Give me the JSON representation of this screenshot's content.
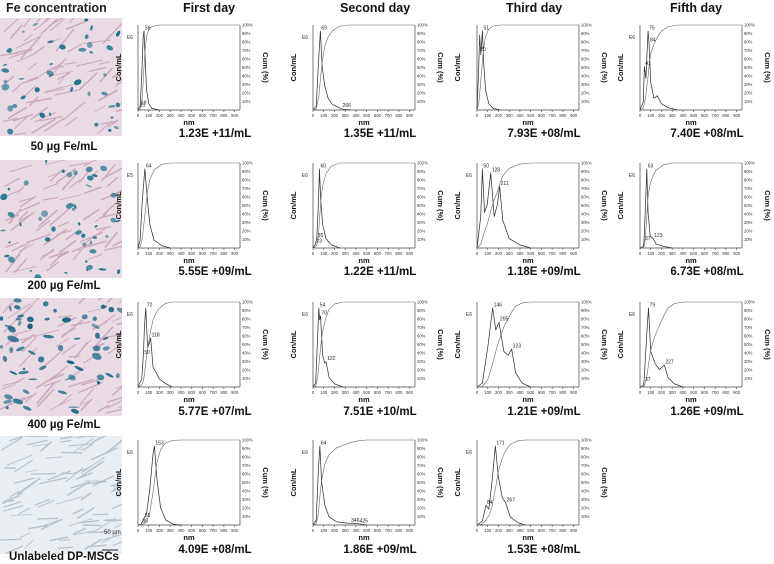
{
  "column_headers": [
    "Fe concentration",
    "First day",
    "Second day",
    "Third day",
    "Fifth day"
  ],
  "rows": [
    {
      "label": "50 µg Fe/mL",
      "micro_color": "#1d6f88",
      "concentrations": [
        "1.23E +11/mL",
        "1.35E +11/mL",
        "7.93E +08/mL",
        "7.40E +08/mL"
      ]
    },
    {
      "label": "200 µg Fe/mL",
      "micro_color": "#27758c",
      "concentrations": [
        "5.55E +09/mL",
        "1.22E +11/mL",
        "1.18E +09/mL",
        "6.73E +08/mL"
      ]
    },
    {
      "label": "400 µg Fe/mL",
      "micro_color": "#17617f",
      "concentrations": [
        "5.77E +07/mL",
        "7.51E +10/mL",
        "1.21E +09/mL",
        "1.26E +09/mL"
      ]
    },
    {
      "label": "Unlabeled DP-MSCs",
      "micro_color": "#9aa9b5",
      "scale_bar": "50 µm",
      "concentrations": [
        "4.09E +08/mL",
        "1.86E +09/mL",
        "1.53E +08/mL",
        null
      ]
    }
  ],
  "axis": {
    "xlabel": "nm",
    "ylabel_left": "Con/mL",
    "ylabel_right": "Cum (%)",
    "xticks": [
      "0",
      "100",
      "200",
      "300",
      "400",
      "500",
      "600",
      "700",
      "800",
      "900"
    ],
    "yticks_right": [
      "10%",
      "20%",
      "30%",
      "40%",
      "50%",
      "60%",
      "70%",
      "80%",
      "90%",
      "100%"
    ]
  },
  "chart_data": [
    {
      "type": "line",
      "row": 0,
      "col": 0,
      "scale": "E6",
      "peaks": [
        {
          "x": 56,
          "label": "56"
        },
        {
          "x": 19,
          "label": "19"
        },
        {
          "x": 11,
          "label": "11"
        }
      ],
      "curve": [
        [
          0,
          0
        ],
        [
          20,
          0.05
        ],
        [
          35,
          0.45
        ],
        [
          48,
          0.92
        ],
        [
          56,
          1.0
        ],
        [
          65,
          0.7
        ],
        [
          80,
          0.25
        ],
        [
          100,
          0.08
        ],
        [
          130,
          0.02
        ],
        [
          200,
          0
        ]
      ]
    },
    {
      "type": "line",
      "row": 0,
      "col": 1,
      "scale": "E6",
      "peaks": [
        {
          "x": 69,
          "label": "69"
        },
        {
          "x": 266,
          "label": "266"
        }
      ],
      "curve": [
        [
          0,
          0
        ],
        [
          30,
          0.05
        ],
        [
          55,
          0.7
        ],
        [
          69,
          1.0
        ],
        [
          85,
          0.55
        ],
        [
          110,
          0.3
        ],
        [
          140,
          0.15
        ],
        [
          180,
          0.07
        ],
        [
          240,
          0.03
        ],
        [
          280,
          0.01
        ],
        [
          350,
          0
        ]
      ]
    },
    {
      "type": "line",
      "row": 0,
      "col": 2,
      "scale": "",
      "peaks": [
        {
          "x": 51,
          "label": "51"
        },
        {
          "x": 20,
          "label": "20"
        }
      ],
      "curve": [
        [
          0,
          0
        ],
        [
          15,
          0.5
        ],
        [
          25,
          0.95
        ],
        [
          35,
          0.7
        ],
        [
          51,
          1.0
        ],
        [
          62,
          0.6
        ],
        [
          80,
          0.25
        ],
        [
          110,
          0.08
        ],
        [
          150,
          0.02
        ],
        [
          220,
          0
        ]
      ]
    },
    {
      "type": "line",
      "row": 0,
      "col": 3,
      "scale": "E6",
      "peaks": [
        {
          "x": 75,
          "label": "75"
        },
        {
          "x": 84,
          "label": "84"
        },
        {
          "x": 41,
          "label": "41"
        }
      ],
      "curve": [
        [
          0,
          0
        ],
        [
          30,
          0.1
        ],
        [
          41,
          0.55
        ],
        [
          55,
          0.4
        ],
        [
          75,
          1.0
        ],
        [
          84,
          0.85
        ],
        [
          100,
          0.35
        ],
        [
          130,
          0.15
        ],
        [
          160,
          0.18
        ],
        [
          200,
          0.08
        ],
        [
          260,
          0.03
        ],
        [
          350,
          0
        ]
      ]
    },
    {
      "type": "line",
      "row": 1,
      "col": 0,
      "scale": "E5",
      "peaks": [
        {
          "x": 64,
          "label": "64"
        }
      ],
      "curve": [
        [
          0,
          0
        ],
        [
          20,
          0.1
        ],
        [
          40,
          0.6
        ],
        [
          64,
          1.0
        ],
        [
          85,
          0.65
        ],
        [
          110,
          0.3
        ],
        [
          150,
          0.1
        ],
        [
          220,
          0.03
        ],
        [
          300,
          0
        ]
      ]
    },
    {
      "type": "line",
      "row": 1,
      "col": 1,
      "scale": "E6",
      "peaks": [
        {
          "x": 60,
          "label": "60"
        },
        {
          "x": 35,
          "label": "35"
        },
        {
          "x": 23,
          "label": "23"
        }
      ],
      "curve": [
        [
          0,
          0
        ],
        [
          23,
          0.05
        ],
        [
          35,
          0.12
        ],
        [
          50,
          0.55
        ],
        [
          60,
          1.0
        ],
        [
          72,
          0.6
        ],
        [
          90,
          0.3
        ],
        [
          120,
          0.12
        ],
        [
          170,
          0.04
        ],
        [
          250,
          0
        ]
      ]
    },
    {
      "type": "line",
      "row": 1,
      "col": 2,
      "scale": "E6",
      "peaks": [
        {
          "x": 50,
          "label": "50"
        },
        {
          "x": 128,
          "label": "128"
        },
        {
          "x": 211,
          "label": "211"
        }
      ],
      "curve": [
        [
          0,
          0
        ],
        [
          35,
          0.4
        ],
        [
          50,
          1.0
        ],
        [
          70,
          0.45
        ],
        [
          95,
          0.55
        ],
        [
          128,
          0.95
        ],
        [
          160,
          0.4
        ],
        [
          190,
          0.55
        ],
        [
          211,
          0.78
        ],
        [
          240,
          0.35
        ],
        [
          300,
          0.12
        ],
        [
          400,
          0.04
        ],
        [
          500,
          0
        ]
      ]
    },
    {
      "type": "line",
      "row": 1,
      "col": 3,
      "scale": "E6",
      "peaks": [
        {
          "x": 63,
          "label": "63"
        },
        {
          "x": 37,
          "label": "37"
        },
        {
          "x": 123,
          "label": "123"
        }
      ],
      "curve": [
        [
          0,
          0
        ],
        [
          30,
          0.02
        ],
        [
          37,
          0.08
        ],
        [
          50,
          0.5
        ],
        [
          63,
          1.0
        ],
        [
          75,
          0.45
        ],
        [
          95,
          0.15
        ],
        [
          123,
          0.12
        ],
        [
          150,
          0.05
        ],
        [
          220,
          0.02
        ],
        [
          300,
          0
        ]
      ]
    },
    {
      "type": "line",
      "row": 2,
      "col": 0,
      "scale": "E6",
      "peaks": [
        {
          "x": 72,
          "label": "72"
        },
        {
          "x": 118,
          "label": "118"
        },
        {
          "x": 50,
          "label": "50"
        }
      ],
      "curve": [
        [
          0,
          0
        ],
        [
          35,
          0.1
        ],
        [
          50,
          0.4
        ],
        [
          60,
          0.75
        ],
        [
          72,
          1.0
        ],
        [
          90,
          0.5
        ],
        [
          105,
          0.55
        ],
        [
          118,
          0.62
        ],
        [
          140,
          0.25
        ],
        [
          170,
          0.18
        ],
        [
          200,
          0.1
        ],
        [
          260,
          0.04
        ],
        [
          320,
          0
        ]
      ]
    },
    {
      "type": "line",
      "row": 2,
      "col": 1,
      "scale": "E6",
      "peaks": [
        {
          "x": 54,
          "label": "54"
        },
        {
          "x": 70,
          "label": "70"
        },
        {
          "x": 122,
          "label": "122"
        }
      ],
      "curve": [
        [
          0,
          0
        ],
        [
          25,
          0.05
        ],
        [
          45,
          0.7
        ],
        [
          54,
          1.0
        ],
        [
          62,
          0.85
        ],
        [
          70,
          0.9
        ],
        [
          90,
          0.4
        ],
        [
          110,
          0.3
        ],
        [
          122,
          0.32
        ],
        [
          150,
          0.12
        ],
        [
          200,
          0.04
        ],
        [
          280,
          0
        ]
      ]
    },
    {
      "type": "line",
      "row": 2,
      "col": 2,
      "scale": "E6",
      "peaks": [
        {
          "x": 146,
          "label": "146"
        },
        {
          "x": 205,
          "label": "205"
        },
        {
          "x": 323,
          "label": "323"
        }
      ],
      "curve": [
        [
          0,
          0
        ],
        [
          50,
          0.05
        ],
        [
          100,
          0.5
        ],
        [
          146,
          1.0
        ],
        [
          175,
          0.72
        ],
        [
          205,
          0.82
        ],
        [
          250,
          0.45
        ],
        [
          290,
          0.4
        ],
        [
          323,
          0.48
        ],
        [
          360,
          0.18
        ],
        [
          420,
          0.05
        ],
        [
          500,
          0
        ]
      ]
    },
    {
      "type": "line",
      "row": 2,
      "col": 3,
      "scale": "E6",
      "peaks": [
        {
          "x": 79,
          "label": "79"
        },
        {
          "x": 37,
          "label": "37"
        },
        {
          "x": 227,
          "label": "227"
        }
      ],
      "curve": [
        [
          0,
          0
        ],
        [
          30,
          0.02
        ],
        [
          37,
          0.06
        ],
        [
          60,
          0.6
        ],
        [
          79,
          1.0
        ],
        [
          100,
          0.45
        ],
        [
          140,
          0.3
        ],
        [
          180,
          0.22
        ],
        [
          227,
          0.28
        ],
        [
          260,
          0.12
        ],
        [
          320,
          0.04
        ],
        [
          400,
          0
        ]
      ]
    },
    {
      "type": "line",
      "row": 3,
      "col": 0,
      "scale": "E6",
      "peaks": [
        {
          "x": 153,
          "label": "153"
        },
        {
          "x": 55,
          "label": "55"
        },
        {
          "x": 30,
          "label": "30"
        }
      ],
      "curve": [
        [
          0,
          0
        ],
        [
          30,
          0.01
        ],
        [
          55,
          0.08
        ],
        [
          80,
          0.15
        ],
        [
          110,
          0.45
        ],
        [
          140,
          0.9
        ],
        [
          153,
          1.0
        ],
        [
          175,
          0.6
        ],
        [
          210,
          0.22
        ],
        [
          260,
          0.06
        ],
        [
          330,
          0.01
        ],
        [
          400,
          0
        ]
      ]
    },
    {
      "type": "line",
      "row": 3,
      "col": 1,
      "scale": "E6",
      "peaks": [
        {
          "x": 64,
          "label": "64"
        },
        {
          "x": 346,
          "label": "346"
        },
        {
          "x": 425,
          "label": "425"
        }
      ],
      "curve": [
        [
          0,
          0
        ],
        [
          30,
          0.06
        ],
        [
          50,
          0.7
        ],
        [
          64,
          1.0
        ],
        [
          80,
          0.55
        ],
        [
          110,
          0.25
        ],
        [
          150,
          0.1
        ],
        [
          220,
          0.04
        ],
        [
          346,
          0.02
        ],
        [
          425,
          0.015
        ],
        [
          500,
          0
        ]
      ]
    },
    {
      "type": "line",
      "row": 3,
      "col": 2,
      "scale": "E6",
      "peaks": [
        {
          "x": 171,
          "label": "171"
        },
        {
          "x": 84,
          "label": "84"
        },
        {
          "x": 267,
          "label": "267"
        }
      ],
      "curve": [
        [
          0,
          0
        ],
        [
          50,
          0.05
        ],
        [
          84,
          0.25
        ],
        [
          110,
          0.2
        ],
        [
          140,
          0.55
        ],
        [
          171,
          1.0
        ],
        [
          200,
          0.6
        ],
        [
          235,
          0.35
        ],
        [
          267,
          0.28
        ],
        [
          310,
          0.1
        ],
        [
          380,
          0.03
        ],
        [
          450,
          0
        ]
      ]
    }
  ]
}
